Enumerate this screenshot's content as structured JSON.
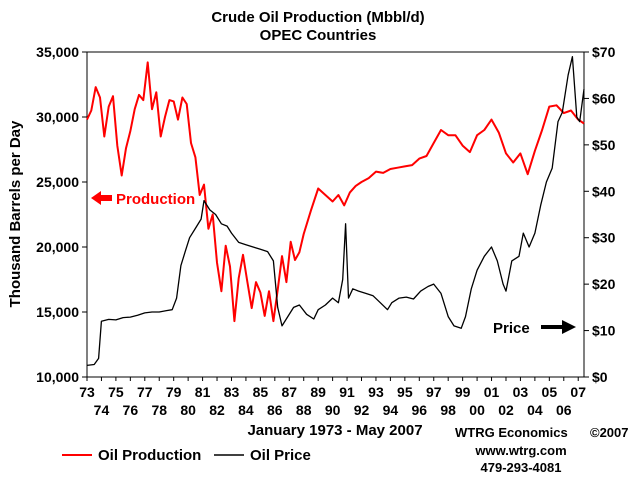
{
  "chart_data": {
    "type": "line",
    "title": "Crude Oil Production (Mbbl/d)",
    "subtitle": "OPEC Countries",
    "xlabel": "January 1973 - May 2007",
    "ylabel": "Thousand Barrels per Day",
    "y2label": "",
    "xlim": [
      1973.0,
      2007.4
    ],
    "ylim": [
      10000,
      35000
    ],
    "y2lim": [
      0,
      70
    ],
    "grid": false,
    "x_tick_labels_top": [
      "73",
      "75",
      "77",
      "79",
      "81",
      "83",
      "85",
      "87",
      "89",
      "91",
      "93",
      "95",
      "97",
      "99",
      "01",
      "03",
      "05",
      "07"
    ],
    "x_tick_labels_bottom": [
      "74",
      "76",
      "78",
      "80",
      "82",
      "84",
      "86",
      "88",
      "90",
      "92",
      "94",
      "96",
      "98",
      "00",
      "02",
      "04",
      "06"
    ],
    "y_tick_labels": [
      "10,000",
      "15,000",
      "20,000",
      "25,000",
      "30,000",
      "35,000"
    ],
    "y2_tick_labels": [
      "$0",
      "$10",
      "$20",
      "$30",
      "$40",
      "$50",
      "$60",
      "$70"
    ],
    "annotations": {
      "production": "Production",
      "price": "Price"
    },
    "legend": {
      "placement": "bottom-left",
      "production_label": "Oil Production",
      "price_label": "Oil Price"
    },
    "series": [
      {
        "name": "Oil Production",
        "axis": "left",
        "color": "#ff0000",
        "x": [
          1973.0,
          1973.3,
          1973.6,
          1973.9,
          1974.2,
          1974.5,
          1974.8,
          1975.1,
          1975.4,
          1975.7,
          1976.0,
          1976.3,
          1976.6,
          1976.9,
          1977.2,
          1977.5,
          1977.8,
          1978.1,
          1978.4,
          1978.7,
          1979.0,
          1979.3,
          1979.6,
          1979.9,
          1980.2,
          1980.5,
          1980.8,
          1981.1,
          1981.4,
          1981.7,
          1982.0,
          1982.3,
          1982.6,
          1982.9,
          1983.2,
          1983.5,
          1983.8,
          1984.1,
          1984.4,
          1984.7,
          1985.0,
          1985.3,
          1985.6,
          1985.9,
          1986.2,
          1986.5,
          1986.8,
          1987.1,
          1987.4,
          1987.7,
          1988.0,
          1988.5,
          1989.0,
          1989.5,
          1990.0,
          1990.4,
          1990.8,
          1991.2,
          1991.6,
          1992.0,
          1992.5,
          1993.0,
          1993.5,
          1994.0,
          1994.5,
          1995.0,
          1995.5,
          1996.0,
          1996.5,
          1997.0,
          1997.5,
          1998.0,
          1998.5,
          1999.0,
          1999.5,
          2000.0,
          2000.5,
          2001.0,
          2001.5,
          2002.0,
          2002.5,
          2003.0,
          2003.5,
          2004.0,
          2004.5,
          2005.0,
          2005.5,
          2006.0,
          2006.5,
          2007.0,
          2007.4
        ],
        "values": [
          29800,
          30500,
          32300,
          31500,
          28500,
          30800,
          31600,
          27800,
          25500,
          27600,
          28900,
          30600,
          31700,
          31300,
          34200,
          30600,
          31900,
          28500,
          30000,
          31300,
          31200,
          29800,
          31500,
          31000,
          28000,
          26900,
          24000,
          24800,
          21400,
          22500,
          18800,
          16600,
          20100,
          18500,
          14300,
          17600,
          19400,
          17300,
          15300,
          17300,
          16500,
          14700,
          16600,
          14300,
          16700,
          19300,
          17300,
          20400,
          19000,
          19600,
          21000,
          22800,
          24500,
          24000,
          23500,
          24000,
          23200,
          24200,
          24700,
          25000,
          25300,
          25800,
          25700,
          26000,
          26100,
          26200,
          26300,
          26800,
          27000,
          28000,
          29000,
          28600,
          28600,
          27800,
          27300,
          28600,
          29000,
          29800,
          28800,
          27200,
          26500,
          27200,
          25600,
          27400,
          29000,
          30800,
          30900,
          30300,
          30500,
          29800,
          29500
        ]
      },
      {
        "name": "Oil Price",
        "axis": "right",
        "color": "#000000",
        "x": [
          1973.0,
          1973.5,
          1973.8,
          1974.0,
          1974.5,
          1975.0,
          1975.5,
          1976.0,
          1976.5,
          1977.0,
          1977.5,
          1978.0,
          1978.5,
          1978.9,
          1979.2,
          1979.5,
          1979.8,
          1980.1,
          1980.5,
          1980.9,
          1981.1,
          1981.5,
          1981.9,
          1982.3,
          1982.7,
          1983.0,
          1983.5,
          1984.0,
          1984.5,
          1985.0,
          1985.5,
          1985.9,
          1986.2,
          1986.5,
          1986.9,
          1987.3,
          1987.7,
          1988.2,
          1988.7,
          1989.0,
          1989.5,
          1990.0,
          1990.4,
          1990.7,
          1990.9,
          1991.1,
          1991.4,
          1991.8,
          1992.3,
          1992.8,
          1993.3,
          1993.8,
          1994.1,
          1994.6,
          1995.1,
          1995.6,
          1996.1,
          1996.6,
          1997.0,
          1997.5,
          1998.0,
          1998.4,
          1998.9,
          1999.2,
          1999.6,
          2000.0,
          2000.5,
          2001.0,
          2001.4,
          2001.8,
          2002.0,
          2002.4,
          2002.9,
          2003.2,
          2003.6,
          2004.0,
          2004.4,
          2004.8,
          2005.2,
          2005.6,
          2005.9,
          2006.3,
          2006.6,
          2006.9,
          2007.1,
          2007.4
        ],
        "values": [
          2.5,
          2.7,
          4.0,
          12.0,
          12.4,
          12.3,
          12.8,
          12.9,
          13.3,
          13.8,
          14.0,
          14.0,
          14.3,
          14.5,
          17.0,
          24.0,
          27.0,
          30.0,
          32.0,
          34.0,
          38.0,
          36.0,
          35.0,
          33.0,
          32.5,
          31.0,
          29.0,
          28.5,
          28.0,
          27.5,
          27.0,
          25.0,
          15.0,
          11.0,
          13.0,
          15.0,
          15.5,
          13.5,
          12.5,
          14.5,
          15.5,
          17.0,
          16.0,
          21.0,
          33.0,
          17.0,
          19.0,
          18.5,
          18.0,
          17.5,
          16.0,
          14.5,
          16.0,
          17.0,
          17.2,
          16.8,
          18.5,
          19.5,
          20.0,
          18.0,
          13.0,
          11.0,
          10.5,
          13.0,
          19.0,
          23.0,
          26.0,
          28.0,
          25.0,
          20.0,
          18.5,
          25.0,
          26.0,
          31.0,
          28.0,
          31.0,
          37.0,
          42.0,
          45.0,
          55.0,
          57.0,
          65.0,
          69.0,
          56.0,
          55.0,
          62.0
        ]
      }
    ]
  },
  "credits": {
    "company": "WTRG Economics",
    "copyright": "©2007",
    "website": "www.wtrg.com",
    "phone": "479-293-4081"
  }
}
